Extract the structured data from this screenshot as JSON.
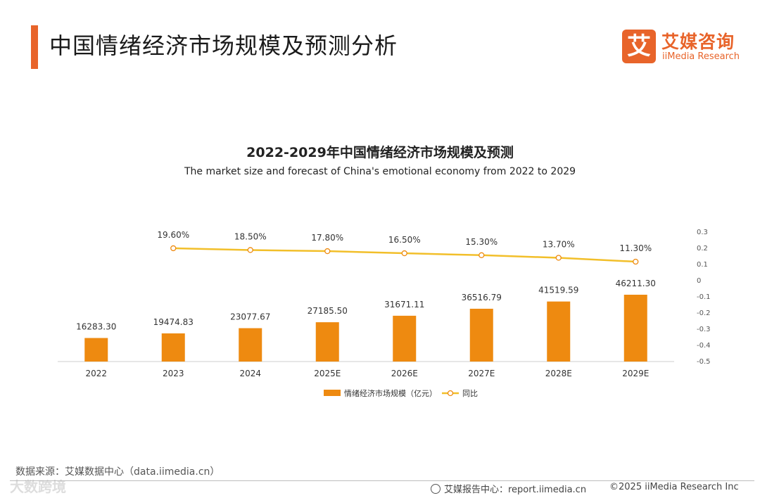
{
  "header": {
    "title": "中国情绪经济市场规模及预测分析",
    "logo_mark": "艾",
    "logo_cn": "艾媒咨询",
    "logo_en": "iiMedia Research"
  },
  "chart_data": {
    "type": "bar+line",
    "title": "2022-2029年中国情绪经济市场规模及预测",
    "subtitle": "The market size and forecast of China's emotional economy from 2022 to 2029",
    "categories": [
      "2022",
      "2023",
      "2024",
      "2025E",
      "2026E",
      "2027E",
      "2028E",
      "2029E"
    ],
    "series": [
      {
        "name": "情绪经济市场规模（亿元）",
        "type": "bar",
        "color": "#ee8a10",
        "values": [
          16283.3,
          19474.83,
          23077.67,
          27185.5,
          31671.11,
          36516.79,
          41519.59,
          46211.3
        ],
        "labels": [
          "16283.30",
          "19474.83",
          "23077.67",
          "27185.50",
          "31671.11",
          "36516.79",
          "41519.59",
          "46211.30"
        ]
      },
      {
        "name": "同比",
        "type": "line",
        "axis": "right",
        "color": "#f2bf2a",
        "values": [
          null,
          0.196,
          0.185,
          0.178,
          0.165,
          0.153,
          0.137,
          0.113
        ],
        "labels": [
          "",
          "19.60%",
          "18.50%",
          "17.80%",
          "16.50%",
          "15.30%",
          "13.70%",
          "11.30%"
        ]
      }
    ],
    "right_axis": {
      "ylim": [
        -0.5,
        0.3
      ],
      "ticks": [
        "0.3",
        "0.2",
        "0.1",
        "0",
        "-0.1",
        "-0.2",
        "-0.3",
        "-0.4",
        "-0.5"
      ]
    },
    "legend_position": "bottom"
  },
  "footer": {
    "source": "数据来源：艾媒数据中心（data.iimedia.cn）",
    "watermark": "大数跨境",
    "report": "艾媒报告中心：report.iimedia.cn",
    "copyright": "©2025  iiMedia Research  Inc"
  }
}
